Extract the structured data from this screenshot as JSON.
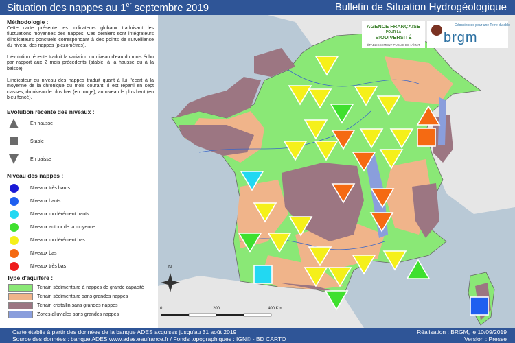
{
  "header": {
    "title_pre": "Situation des nappes au 1",
    "title_sup": "er",
    "title_post": " septembre 2019",
    "bulletin": "Bulletin de Situation Hydrogéologique"
  },
  "legend": {
    "methodology_heading": "Méthodologie :",
    "methodology_p1": "Cette carte présente les indicateurs globaux traduisant les fluctuations moyennes des nappes. Ces derniers sont intégrateurs d'indicateurs ponctuels correspondant à des points de surveillance du niveau des nappes (piézomètres).",
    "methodology_p2": "L'évolution récente traduit la variation du niveau d'eau du mois échu par rapport aux 2 mois précédents (stable, à la hausse ou à la baisse).",
    "methodology_p3": "L'indicateur du niveau des nappes traduit quant à lui l'écart à la moyenne de la chronique du mois courant. Il est réparti en sept classes, du niveau le plus bas (en rouge), au niveau le plus haut (en bleu foncé).",
    "evolution_heading": "Evolution récente des niveaux :",
    "evolution": [
      {
        "label": "En hausse",
        "icon": "triangle-up-icon"
      },
      {
        "label": "Stable",
        "icon": "square-icon"
      },
      {
        "label": "En baisse",
        "icon": "triangle-down-icon"
      }
    ],
    "levels_heading": "Niveau des nappes :",
    "levels": [
      {
        "label": "Niveaux très hauts",
        "color": "#1a1ad6"
      },
      {
        "label": "Niveaux hauts",
        "color": "#1f5ff0"
      },
      {
        "label": "Niveaux modérément hauts",
        "color": "#22d8f2"
      },
      {
        "label": "Niveaux autour de la moyenne",
        "color": "#3fe02e"
      },
      {
        "label": "Niveaux modérément bas",
        "color": "#f5f01a"
      },
      {
        "label": "Niveaux bas",
        "color": "#f56a12"
      },
      {
        "label": "Niveaux très bas",
        "color": "#ee1c1c"
      }
    ],
    "aquifer_heading": "Type d'aquifère :",
    "aquifers": [
      {
        "label": "Terrain sédimentaire à nappes de grande capacité",
        "color": "#8ae876"
      },
      {
        "label": "Terrain sédimentaire sans grandes nappes",
        "color": "#f0b48a"
      },
      {
        "label": "Terrain cristallin sans grandes nappes",
        "color": "#9c7682"
      },
      {
        "label": "Zones alluviales sans grandes nappes",
        "color": "#8a9edc"
      }
    ]
  },
  "logos": {
    "afb_line1": "AGENCE FRANÇAISE",
    "afb_line2": "POUR LA",
    "afb_line3": "BIODIVERSITÉ",
    "afb_sub": "ÉTABLISSEMENT PUBLIC DE L'ÉTAT",
    "brgm_tagline": "Géosciences pour une Terre durable",
    "brgm_name": "brgm"
  },
  "map": {
    "north_label": "N",
    "scale_labels": [
      "0",
      "200",
      "400 Km"
    ]
  },
  "footer": {
    "source1": "Carte établie à partir des données de la banque ADES acquises jusqu'au 31 août 2019",
    "source2": "Source des données : banque ADES www.ades.eaufrance.fr / Fonds topographiques : IGN© - BD CARTO",
    "realisation": "Réalisation : BRGM, le 10/09/2019",
    "version": "Version : Presse"
  }
}
